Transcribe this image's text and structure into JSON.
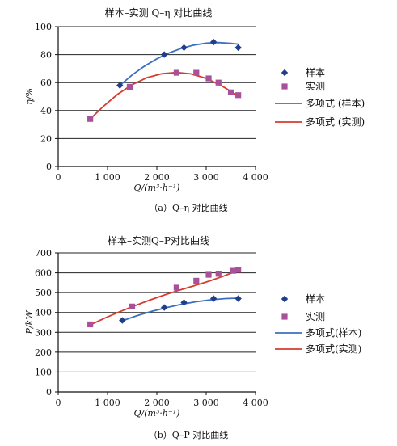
{
  "chart_data": [
    {
      "type": "scatter",
      "title": "样本–实测 Q–η 对比曲线",
      "xlabel": "Q/(m³·h⁻¹)",
      "ylabel": "η/%",
      "caption": "（a）Q–η 对比曲线",
      "xlim": [
        0,
        4000
      ],
      "ylim": [
        0,
        100
      ],
      "x_ticks": [
        0,
        1000,
        2000,
        3000,
        4000
      ],
      "x_tick_labels": [
        "0",
        "1 000",
        "2 000",
        "3 000",
        "4 000"
      ],
      "y_ticks": [
        0,
        20,
        40,
        60,
        80,
        100
      ],
      "y_tick_labels": [
        "0",
        "20",
        "40",
        "60",
        "80",
        "100"
      ],
      "grid": "horizontal",
      "legend_position": "right",
      "series": [
        {
          "name": "样本",
          "kind": "points",
          "marker": "diamond",
          "color": "#1f3f8a",
          "x": [
            1250,
            2150,
            2550,
            3150,
            3650
          ],
          "y": [
            58,
            80,
            85,
            89,
            85
          ]
        },
        {
          "name": "实测",
          "kind": "points",
          "marker": "square",
          "color": "#a8509a",
          "x": [
            650,
            1450,
            2400,
            2800,
            3050,
            3250,
            3500,
            3650
          ],
          "y": [
            34,
            57,
            67,
            67,
            63,
            60,
            53,
            51
          ]
        },
        {
          "name": "多项式 (样本)",
          "kind": "line",
          "color": "#3c6fc0",
          "x": [
            1250,
            1500,
            1750,
            2000,
            2250,
            2500,
            2750,
            3000,
            3250,
            3500,
            3650
          ],
          "y": [
            58,
            65.5,
            71.8,
            77,
            81.2,
            84.5,
            86.8,
            88.2,
            88.6,
            88.1,
            87.5
          ]
        },
        {
          "name": "多项式 (实测)",
          "kind": "line",
          "color": "#d63b2f",
          "x": [
            650,
            900,
            1200,
            1500,
            1800,
            2100,
            2400,
            2700,
            3000,
            3300,
            3650
          ],
          "y": [
            34,
            42.5,
            51.5,
            58.5,
            63.5,
            66.3,
            67.2,
            66.2,
            63,
            58,
            50.5
          ]
        }
      ]
    },
    {
      "type": "scatter",
      "title": "样本–实测Q–P对比曲线",
      "xlabel": "Q/(m³·h⁻¹)",
      "ylabel": "P/kW",
      "caption": "（b）Q–P 对比曲线",
      "xlim": [
        0,
        4000
      ],
      "ylim": [
        0,
        700
      ],
      "x_ticks": [
        0,
        1000,
        2000,
        3000,
        4000
      ],
      "x_tick_labels": [
        "0",
        "1 000",
        "2 000",
        "3 000",
        "4 000"
      ],
      "y_ticks": [
        0,
        100,
        200,
        300,
        400,
        500,
        600,
        700
      ],
      "y_tick_labels": [
        "0",
        "100",
        "200",
        "300",
        "400",
        "500",
        "600",
        "700"
      ],
      "grid": "horizontal",
      "legend_position": "right",
      "series": [
        {
          "name": "样本",
          "kind": "points",
          "marker": "diamond",
          "color": "#1f3f8a",
          "x": [
            1300,
            2150,
            2550,
            3150,
            3650
          ],
          "y": [
            360,
            425,
            450,
            470,
            470
          ]
        },
        {
          "name": "实测",
          "kind": "points",
          "marker": "square",
          "color": "#a8509a",
          "x": [
            650,
            1500,
            2400,
            2800,
            3050,
            3250,
            3550,
            3650
          ],
          "y": [
            340,
            430,
            525,
            560,
            590,
            595,
            610,
            615
          ]
        },
        {
          "name": "多项式(样本)",
          "kind": "line",
          "color": "#3c6fc0",
          "x": [
            1300,
            1600,
            1900,
            2200,
            2500,
            2800,
            3100,
            3400,
            3650
          ],
          "y": [
            358,
            384,
            406,
            425,
            441,
            454,
            464,
            470,
            472
          ]
        },
        {
          "name": "多项式(实测)",
          "kind": "line",
          "color": "#d63b2f",
          "x": [
            650,
            950,
            1250,
            1550,
            1850,
            2150,
            2450,
            2750,
            3050,
            3350,
            3650
          ],
          "y": [
            338,
            372,
            404,
            434,
            462,
            488,
            512,
            534,
            557,
            583,
            612
          ]
        }
      ]
    }
  ]
}
